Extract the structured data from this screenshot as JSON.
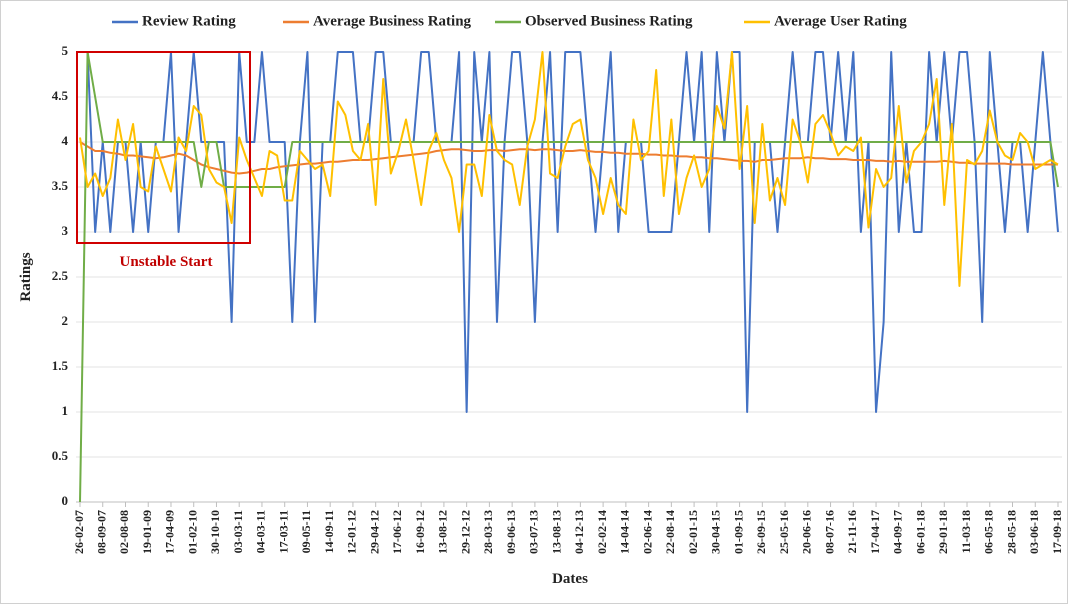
{
  "chart_data": {
    "type": "line",
    "x_label": "Dates",
    "y_label": "Ratings",
    "annotation": "Unstable Start",
    "categories": [
      "26-02-07",
      null,
      null,
      "08-09-07",
      null,
      null,
      "02-08-08",
      null,
      null,
      "19-01-09",
      null,
      null,
      "17-04-09",
      null,
      null,
      "01-02-10",
      null,
      null,
      "30-10-10",
      null,
      null,
      "03-03-11",
      null,
      null,
      "04-03-11",
      null,
      null,
      "17-03-11",
      null,
      null,
      "09-05-11",
      null,
      null,
      "14-09-11",
      null,
      null,
      "12-01-12",
      null,
      null,
      "29-04-12",
      null,
      null,
      "17-06-12",
      null,
      null,
      "16-09-12",
      null,
      null,
      "13-08-12",
      null,
      null,
      "29-12-12",
      null,
      null,
      "28-03-13",
      null,
      null,
      "09-06-13",
      null,
      null,
      "03-07-13",
      null,
      null,
      "13-08-13",
      null,
      null,
      "04-12-13",
      null,
      null,
      "02-02-14",
      null,
      null,
      "14-04-14",
      null,
      null,
      "02-06-14",
      null,
      null,
      "22-08-14",
      null,
      null,
      "02-01-15",
      null,
      null,
      "30-04-15",
      null,
      null,
      "01-09-15",
      null,
      null,
      "26-09-15",
      null,
      null,
      "25-05-16",
      null,
      null,
      "20-06-16",
      null,
      null,
      "08-07-16",
      null,
      null,
      "21-11-16",
      null,
      null,
      "17-04-17",
      null,
      null,
      "04-09-17",
      null,
      null,
      "06-01-18",
      null,
      null,
      "29-01-18",
      null,
      null,
      "11-03-18",
      null,
      null,
      "06-05-18",
      null,
      null,
      "28-05-18",
      null,
      null,
      "03-06-18",
      null,
      null,
      "17-09-18"
    ],
    "series": [
      {
        "name": "Review Rating",
        "color": "#4472c4",
        "values": [
          5,
          5,
          3,
          4,
          3,
          4,
          4,
          3,
          4,
          3,
          4,
          4,
          5,
          3,
          4,
          5,
          4,
          4,
          4,
          4,
          2,
          5,
          4,
          4,
          5,
          4,
          4,
          4,
          2,
          4,
          5,
          2,
          4,
          4,
          5,
          5,
          5,
          4,
          4,
          5,
          5,
          4,
          4,
          4,
          4,
          5,
          5,
          4,
          4,
          4,
          5,
          1,
          5,
          4,
          5,
          2,
          4,
          5,
          5,
          4,
          2,
          4,
          5,
          3,
          5,
          5,
          5,
          4,
          3,
          4,
          5,
          3,
          4,
          4,
          4,
          3,
          3,
          3,
          3,
          4,
          5,
          4,
          5,
          3,
          5,
          4,
          5,
          5,
          1,
          4,
          4,
          4,
          3,
          4,
          5,
          4,
          4,
          5,
          5,
          4,
          5,
          4,
          5,
          3,
          4,
          1,
          2,
          5,
          3,
          4,
          3,
          3,
          5,
          4,
          5,
          4,
          5,
          5,
          4,
          2,
          5,
          4,
          3,
          4,
          4,
          3,
          4,
          5,
          4,
          3
        ]
      },
      {
        "name": "Average Business Rating",
        "color": "#ed7d31",
        "values": [
          4.0,
          3.95,
          3.9,
          3.9,
          3.88,
          3.87,
          3.85,
          3.85,
          3.84,
          3.83,
          3.82,
          3.83,
          3.85,
          3.87,
          3.85,
          3.8,
          3.75,
          3.72,
          3.7,
          3.68,
          3.66,
          3.65,
          3.66,
          3.68,
          3.7,
          3.7,
          3.72,
          3.73,
          3.74,
          3.75,
          3.76,
          3.76,
          3.77,
          3.78,
          3.78,
          3.79,
          3.8,
          3.8,
          3.8,
          3.81,
          3.82,
          3.83,
          3.84,
          3.85,
          3.86,
          3.87,
          3.88,
          3.9,
          3.91,
          3.92,
          3.92,
          3.91,
          3.9,
          3.9,
          3.91,
          3.91,
          3.9,
          3.91,
          3.92,
          3.92,
          3.91,
          3.92,
          3.92,
          3.91,
          3.9,
          3.9,
          3.91,
          3.9,
          3.89,
          3.89,
          3.88,
          3.88,
          3.87,
          3.87,
          3.87,
          3.86,
          3.86,
          3.85,
          3.85,
          3.84,
          3.84,
          3.83,
          3.83,
          3.82,
          3.82,
          3.81,
          3.8,
          3.79,
          3.79,
          3.78,
          3.8,
          3.8,
          3.81,
          3.82,
          3.82,
          3.82,
          3.83,
          3.82,
          3.82,
          3.81,
          3.81,
          3.81,
          3.8,
          3.8,
          3.8,
          3.79,
          3.79,
          3.78,
          3.79,
          3.78,
          3.78,
          3.78,
          3.78,
          3.78,
          3.79,
          3.78,
          3.77,
          3.77,
          3.76,
          3.76,
          3.76,
          3.76,
          3.76,
          3.75,
          3.75,
          3.75,
          3.75,
          3.75,
          3.75,
          3.75
        ]
      },
      {
        "name": "Observed Business Rating",
        "color": "#70ad47",
        "values": [
          0,
          5,
          4.5,
          4,
          4,
          4,
          4,
          4,
          4,
          4,
          4,
          4,
          4,
          4,
          4,
          4,
          3.5,
          4,
          4,
          3.5,
          3.5,
          3.5,
          3.5,
          3.5,
          3.5,
          3.5,
          3.5,
          3.5,
          4,
          4,
          4,
          4,
          4,
          4,
          4,
          4,
          4,
          4,
          4,
          4,
          4,
          4,
          4,
          4,
          4,
          4,
          4,
          4,
          4,
          4,
          4,
          4,
          4,
          4,
          4,
          4,
          4,
          4,
          4,
          4,
          4,
          4,
          4,
          4,
          4,
          4,
          4,
          4,
          4,
          4,
          4,
          4,
          4,
          4,
          4,
          4,
          4,
          4,
          4,
          4,
          4,
          4,
          4,
          4,
          4,
          4,
          4,
          4,
          4,
          4,
          4,
          4,
          4,
          4,
          4,
          4,
          4,
          4,
          4,
          4,
          4,
          4,
          4,
          4,
          4,
          4,
          4,
          4,
          4,
          4,
          4,
          4,
          4,
          4,
          4,
          4,
          4,
          4,
          4,
          4,
          4,
          4,
          4,
          4,
          4,
          4,
          4,
          4,
          4,
          3.5
        ]
      },
      {
        "name": "Average User Rating",
        "color": "#ffc000",
        "values": [
          4.05,
          3.5,
          3.65,
          3.4,
          3.6,
          4.25,
          3.8,
          4.2,
          3.5,
          3.45,
          3.95,
          3.7,
          3.45,
          4.05,
          3.9,
          4.4,
          4.3,
          3.7,
          3.55,
          3.5,
          3.1,
          4.05,
          3.8,
          3.6,
          3.4,
          3.9,
          3.85,
          3.35,
          3.35,
          3.9,
          3.8,
          3.7,
          3.75,
          3.4,
          4.45,
          4.3,
          3.9,
          3.8,
          4.2,
          3.3,
          4.7,
          3.65,
          3.9,
          4.25,
          3.8,
          3.3,
          3.9,
          4.1,
          3.8,
          3.6,
          3.0,
          3.75,
          3.75,
          3.4,
          4.3,
          3.9,
          3.8,
          3.75,
          3.3,
          3.95,
          4.25,
          5.0,
          3.65,
          3.6,
          3.95,
          4.2,
          4.25,
          3.8,
          3.6,
          3.2,
          3.6,
          3.3,
          3.2,
          4.25,
          3.8,
          3.9,
          4.8,
          3.4,
          4.25,
          3.2,
          3.6,
          3.85,
          3.5,
          3.7,
          4.4,
          4.15,
          5.0,
          3.7,
          4.4,
          3.1,
          4.2,
          3.35,
          3.6,
          3.3,
          4.25,
          4.0,
          3.55,
          4.2,
          4.3,
          4.1,
          3.85,
          3.95,
          3.9,
          4.05,
          3.05,
          3.7,
          3.5,
          3.6,
          4.4,
          3.55,
          3.9,
          4.0,
          4.2,
          4.7,
          3.3,
          4.2,
          2.4,
          3.8,
          3.75,
          3.9,
          4.35,
          4.0,
          3.85,
          3.8,
          4.1,
          4.0,
          3.7,
          3.75,
          3.8,
          3.75
        ]
      }
    ],
    "ylim": [
      0,
      5
    ],
    "yticks": [
      0,
      0.5,
      1,
      1.5,
      2,
      2.5,
      3,
      3.5,
      4,
      4.5,
      5
    ],
    "grid": true,
    "legend": "top"
  }
}
